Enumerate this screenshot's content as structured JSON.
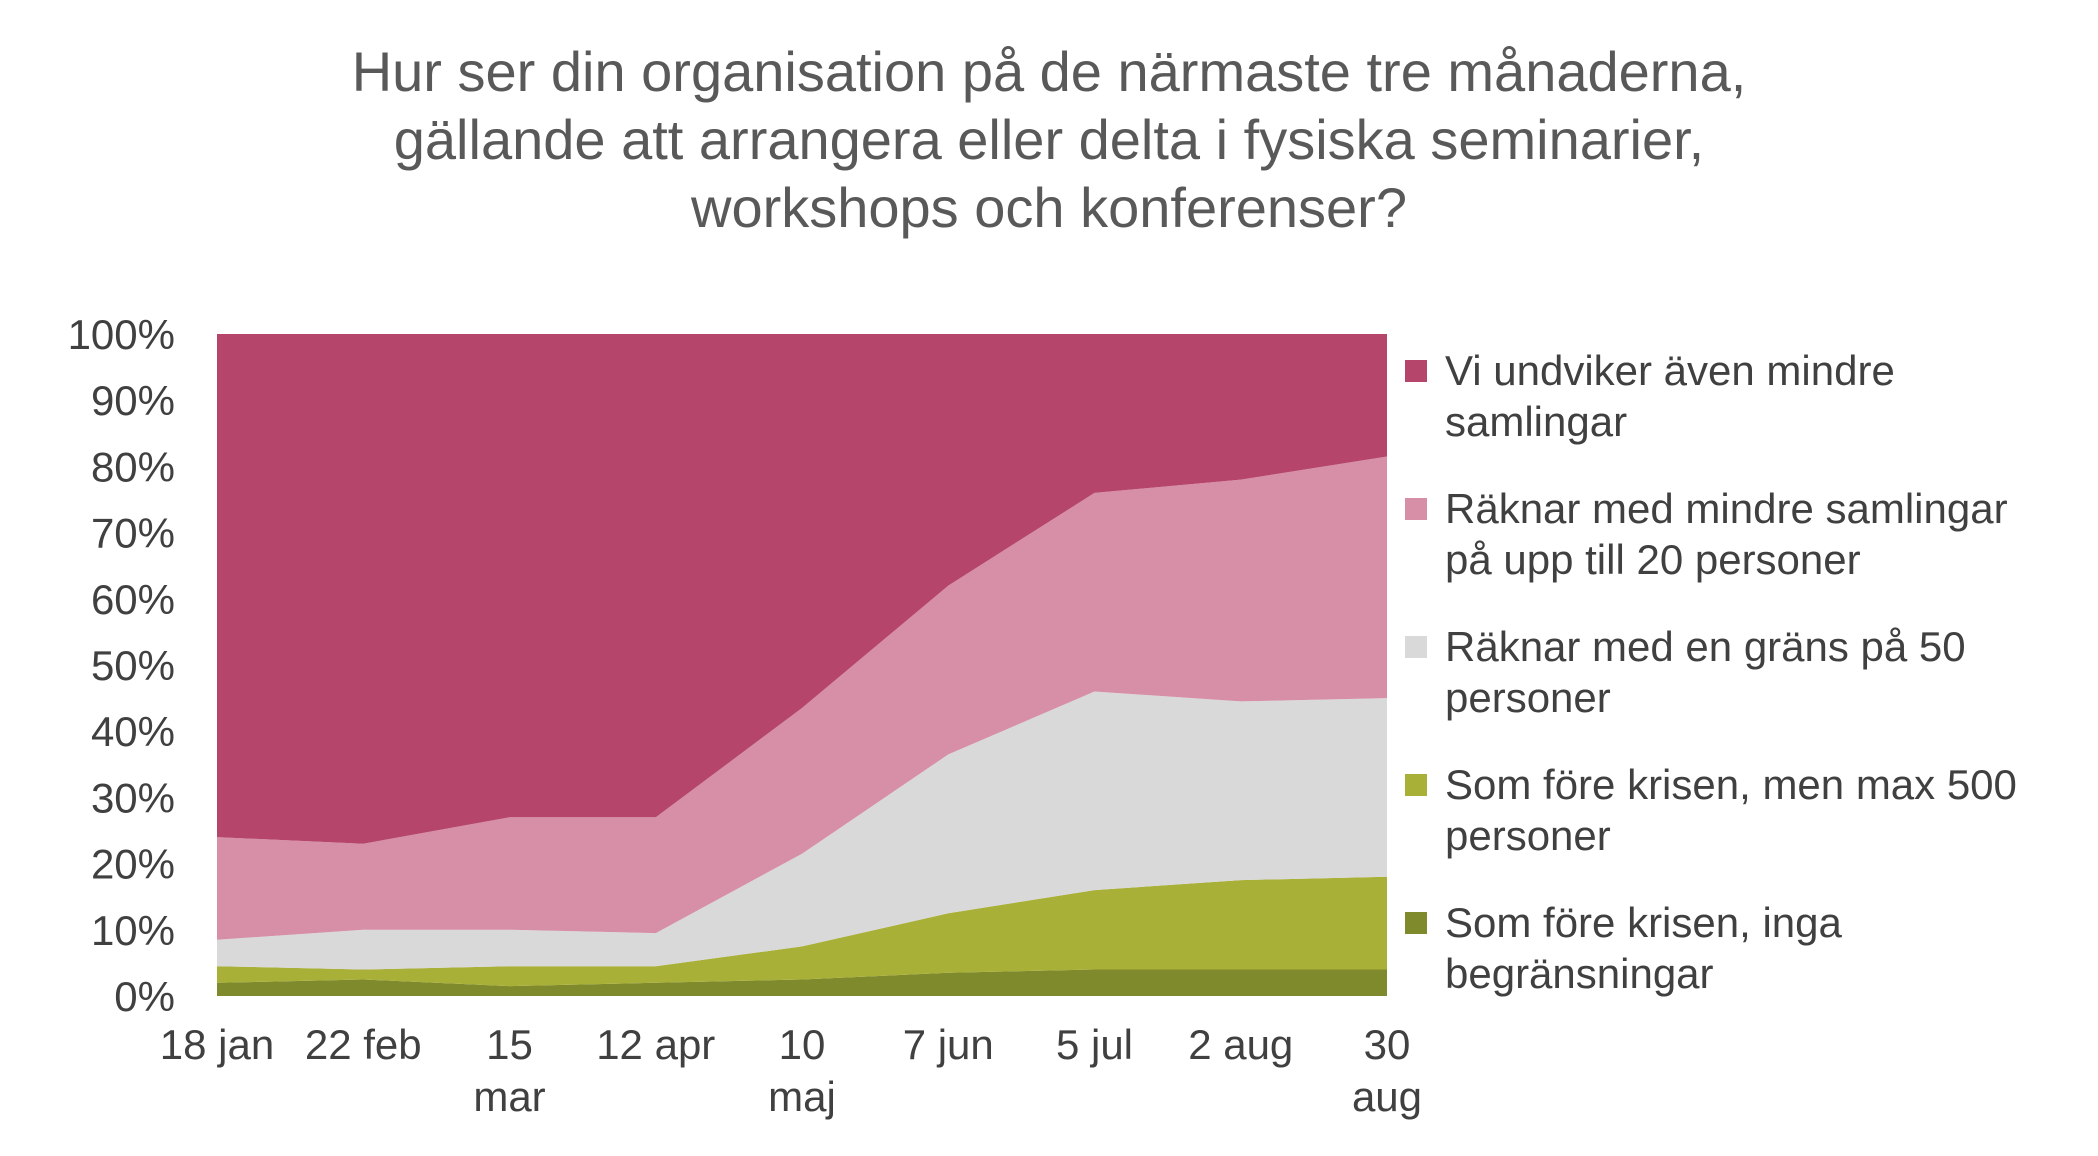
{
  "chart_data": {
    "type": "area",
    "stacked": true,
    "percent": true,
    "title": "Hur ser din organisation på de närmaste tre månaderna,\ngällande att arrangera eller delta i fysiska seminarier,\nworkshops och konferenser?",
    "xlabel": "",
    "ylabel": "",
    "ylim": [
      0,
      100
    ],
    "y_ticks": [
      "0%",
      "10%",
      "20%",
      "30%",
      "40%",
      "50%",
      "60%",
      "70%",
      "80%",
      "90%",
      "100%"
    ],
    "x_labels": [
      "18 jan",
      "22 feb",
      "15\nmar",
      "12 apr",
      "10\nmaj",
      "7 jun",
      "5 jul",
      "2 aug",
      "30\naug"
    ],
    "grid": false,
    "legend_position": "right",
    "series": [
      {
        "name": "Som före krisen, inga begränsningar",
        "legend_label": "Som före krisen, inga\nbegränsningar",
        "color": "#7f8a2c",
        "values": [
          2,
          2.5,
          1.5,
          2,
          2.5,
          3.5,
          4,
          4,
          4
        ]
      },
      {
        "name": "Som före krisen, men max 500 personer",
        "legend_label": "Som före krisen, men max 500\npersoner",
        "color": "#a9b038",
        "values": [
          2.5,
          1.5,
          3,
          2.5,
          5,
          9,
          12,
          13.5,
          14
        ]
      },
      {
        "name": "Räknar med en gräns på 50 personer",
        "legend_label": "Räknar med en gräns på 50\npersoner",
        "color": "#d9d9d9",
        "values": [
          4,
          6,
          5.5,
          5,
          14,
          24,
          30,
          27,
          27
        ]
      },
      {
        "name": "Räknar med mindre samlingar på upp till 20 personer",
        "legend_label": "Räknar med mindre samlingar\npå upp till 20 personer",
        "color": "#d68fa6",
        "values": [
          15.5,
          13,
          17,
          17.5,
          22,
          25.5,
          30,
          33.5,
          36.5
        ]
      },
      {
        "name": "Vi undviker även mindre samlingar",
        "legend_label": "Vi undviker även mindre\nsamlingar",
        "color": "#b5456b",
        "values": [
          76,
          77,
          73,
          73,
          56.5,
          38,
          24,
          22,
          18.5
        ]
      }
    ]
  }
}
